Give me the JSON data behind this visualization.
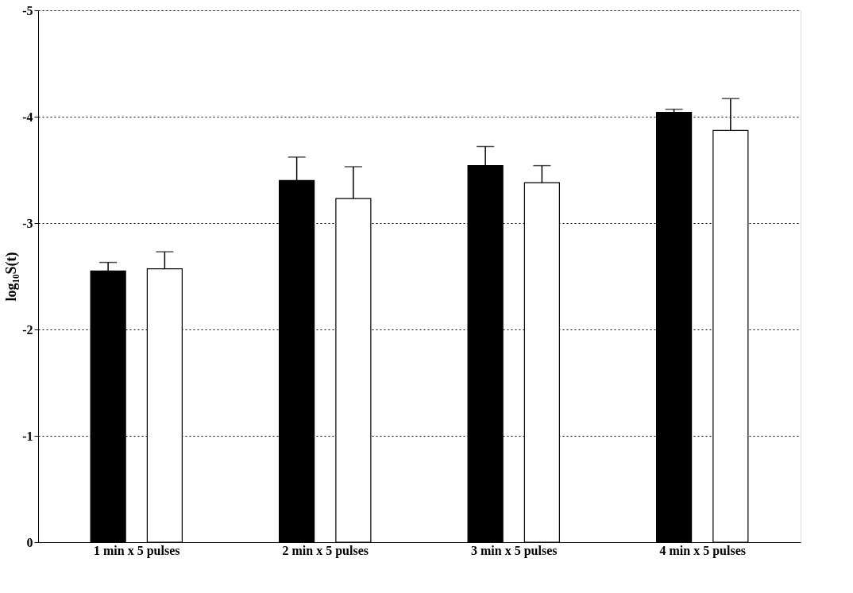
{
  "chart_data": {
    "type": "bar",
    "ylabel": "log₁₀S(t)",
    "categories": [
      "1 min x 5 pulses",
      "2 min x 5 pulses",
      "3 min x 5 pulses",
      "4 min x 5 pulses"
    ],
    "series": [
      {
        "color": "#000000",
        "values": [
          -2.55,
          -3.4,
          -3.54,
          -4.04
        ],
        "errors": [
          [
            -2.63,
            -2.55
          ],
          [
            -3.62,
            -3.4
          ],
          [
            -3.72,
            -3.54
          ],
          [
            -4.07,
            -4.04
          ]
        ]
      },
      {
        "color": "#ffffff",
        "values": [
          -2.57,
          -3.23,
          -3.38,
          -3.87
        ],
        "errors": [
          [
            -2.73,
            -2.57
          ],
          [
            -3.53,
            -3.23
          ],
          [
            -3.54,
            -3.38
          ],
          [
            -4.17,
            -3.87
          ]
        ]
      }
    ],
    "ylim": [
      0,
      -5
    ],
    "yticks": [
      0,
      -1,
      -2,
      -3,
      -4,
      -5
    ],
    "grid": "y"
  }
}
